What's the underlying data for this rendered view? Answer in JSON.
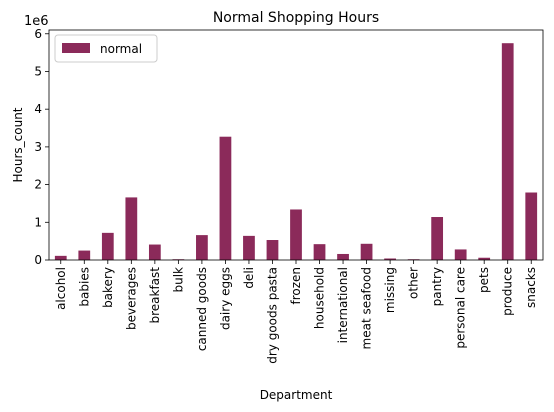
{
  "chart_data": {
    "type": "bar",
    "title": "Normal Shopping Hours",
    "xlabel": "Department",
    "ylabel": "Hours_count",
    "y_scale_label": "1e6",
    "ylim": [
      0,
      6.1
    ],
    "y_ticks": [
      0,
      1,
      2,
      3,
      4,
      5,
      6
    ],
    "legend_position": "top-left",
    "categories": [
      "alcohol",
      "babies",
      "bakery",
      "beverages",
      "breakfast",
      "bulk",
      "canned goods",
      "dairy eggs",
      "deli",
      "dry goods pasta",
      "frozen",
      "household",
      "international",
      "meat seafood",
      "missing",
      "other",
      "pantry",
      "personal care",
      "pets",
      "produce",
      "snacks"
    ],
    "series": [
      {
        "name": "normal",
        "color": "#8b2a5a",
        "values": [
          0.11,
          0.25,
          0.72,
          1.66,
          0.41,
          0.02,
          0.66,
          3.27,
          0.64,
          0.53,
          1.34,
          0.42,
          0.16,
          0.43,
          0.04,
          0.02,
          1.14,
          0.28,
          0.06,
          5.75,
          1.79
        ]
      }
    ]
  }
}
